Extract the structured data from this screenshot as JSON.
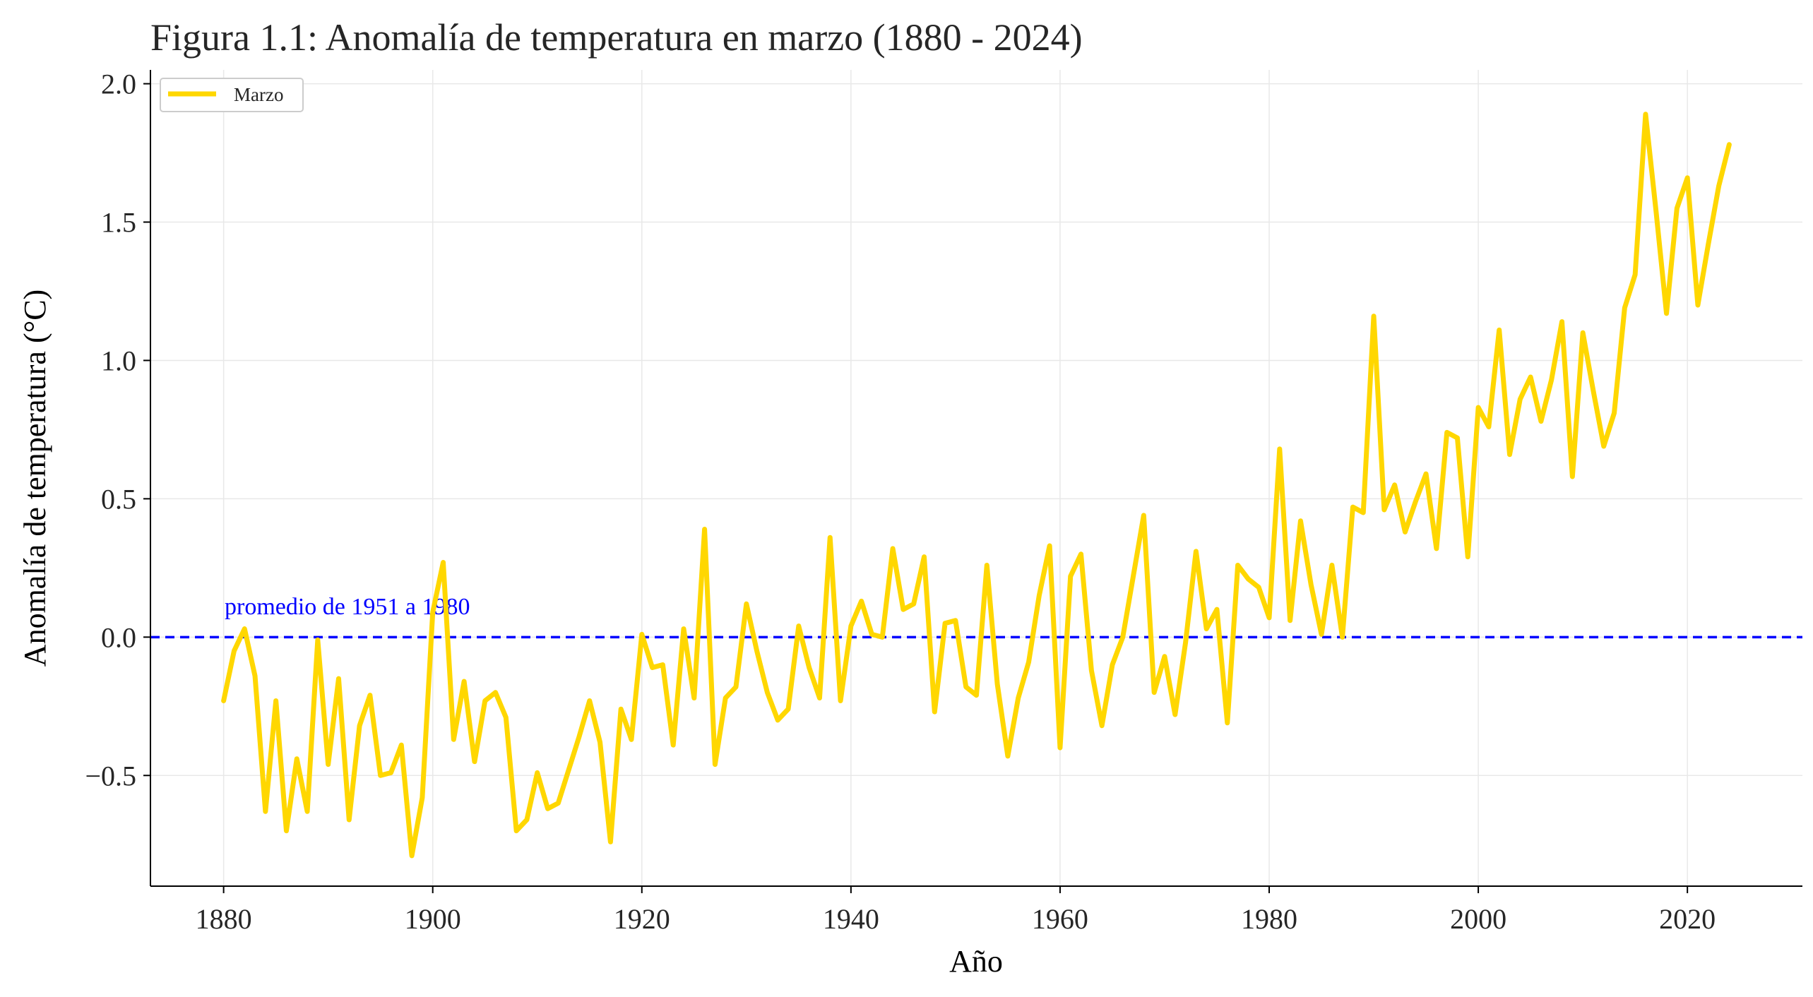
{
  "chart_data": {
    "type": "line",
    "title": "Figura 1.1: Anomalía de temperatura en marzo (1880 - 2024)",
    "xlabel": "Año",
    "ylabel": "Anomalía de temperatura (°C)",
    "xlim": [
      1873,
      2031
    ],
    "ylim": [
      -0.9,
      2.05
    ],
    "xticks": [
      1880,
      1900,
      1920,
      1940,
      1960,
      1980,
      2000,
      2020
    ],
    "yticks": [
      -0.5,
      0.0,
      0.5,
      1.0,
      1.5,
      2.0
    ],
    "ytick_labels": [
      "−0.5",
      "0.0",
      "0.5",
      "1.0",
      "1.5",
      "2.0"
    ],
    "grid": true,
    "legend_position": "top-left",
    "series": [
      {
        "name": "Marzo",
        "color": "#FFD700",
        "x_start": 1880,
        "x_end": 2024,
        "values": [
          -0.23,
          -0.05,
          0.03,
          -0.14,
          -0.63,
          -0.23,
          -0.7,
          -0.44,
          -0.63,
          -0.01,
          -0.46,
          -0.15,
          -0.66,
          -0.32,
          -0.21,
          -0.5,
          -0.49,
          -0.39,
          -0.79,
          -0.58,
          0.09,
          0.27,
          -0.37,
          -0.16,
          -0.45,
          -0.23,
          -0.2,
          -0.29,
          -0.7,
          -0.66,
          -0.49,
          -0.62,
          -0.6,
          -0.48,
          -0.36,
          -0.23,
          -0.38,
          -0.74,
          -0.26,
          -0.37,
          0.01,
          -0.11,
          -0.1,
          -0.39,
          0.03,
          -0.22,
          0.39,
          -0.46,
          -0.22,
          -0.18,
          0.12,
          -0.05,
          -0.2,
          -0.3,
          -0.26,
          0.04,
          -0.11,
          -0.22,
          0.36,
          -0.23,
          0.04,
          0.13,
          0.01,
          0.0,
          0.32,
          0.1,
          0.12,
          0.29,
          -0.27,
          0.05,
          0.06,
          -0.18,
          -0.21,
          0.26,
          -0.17,
          -0.43,
          -0.22,
          -0.09,
          0.15,
          0.33,
          -0.4,
          0.22,
          0.3,
          -0.12,
          -0.32,
          -0.1,
          0.0,
          0.22,
          0.44,
          -0.2,
          -0.07,
          -0.28,
          -0.02,
          0.31,
          0.03,
          0.1,
          -0.31,
          0.26,
          0.21,
          0.18,
          0.07,
          0.68,
          0.06,
          0.42,
          0.19,
          0.01,
          0.26,
          0.0,
          0.47,
          0.45,
          1.16,
          0.46,
          0.55,
          0.38,
          0.49,
          0.59,
          0.32,
          0.74,
          0.72,
          0.29,
          0.83,
          0.76,
          1.11,
          0.66,
          0.86,
          0.94,
          0.78,
          0.93,
          1.14,
          0.58,
          1.1,
          0.89,
          0.69,
          0.81,
          1.19,
          1.31,
          1.89,
          1.54,
          1.17,
          1.55,
          1.66,
          1.2,
          1.42,
          1.63,
          1.78
        ]
      }
    ],
    "reference_line": {
      "y": 0.0,
      "color": "#0000FF",
      "style": "dashed",
      "label": "promedio de 1951 a 1980"
    }
  }
}
